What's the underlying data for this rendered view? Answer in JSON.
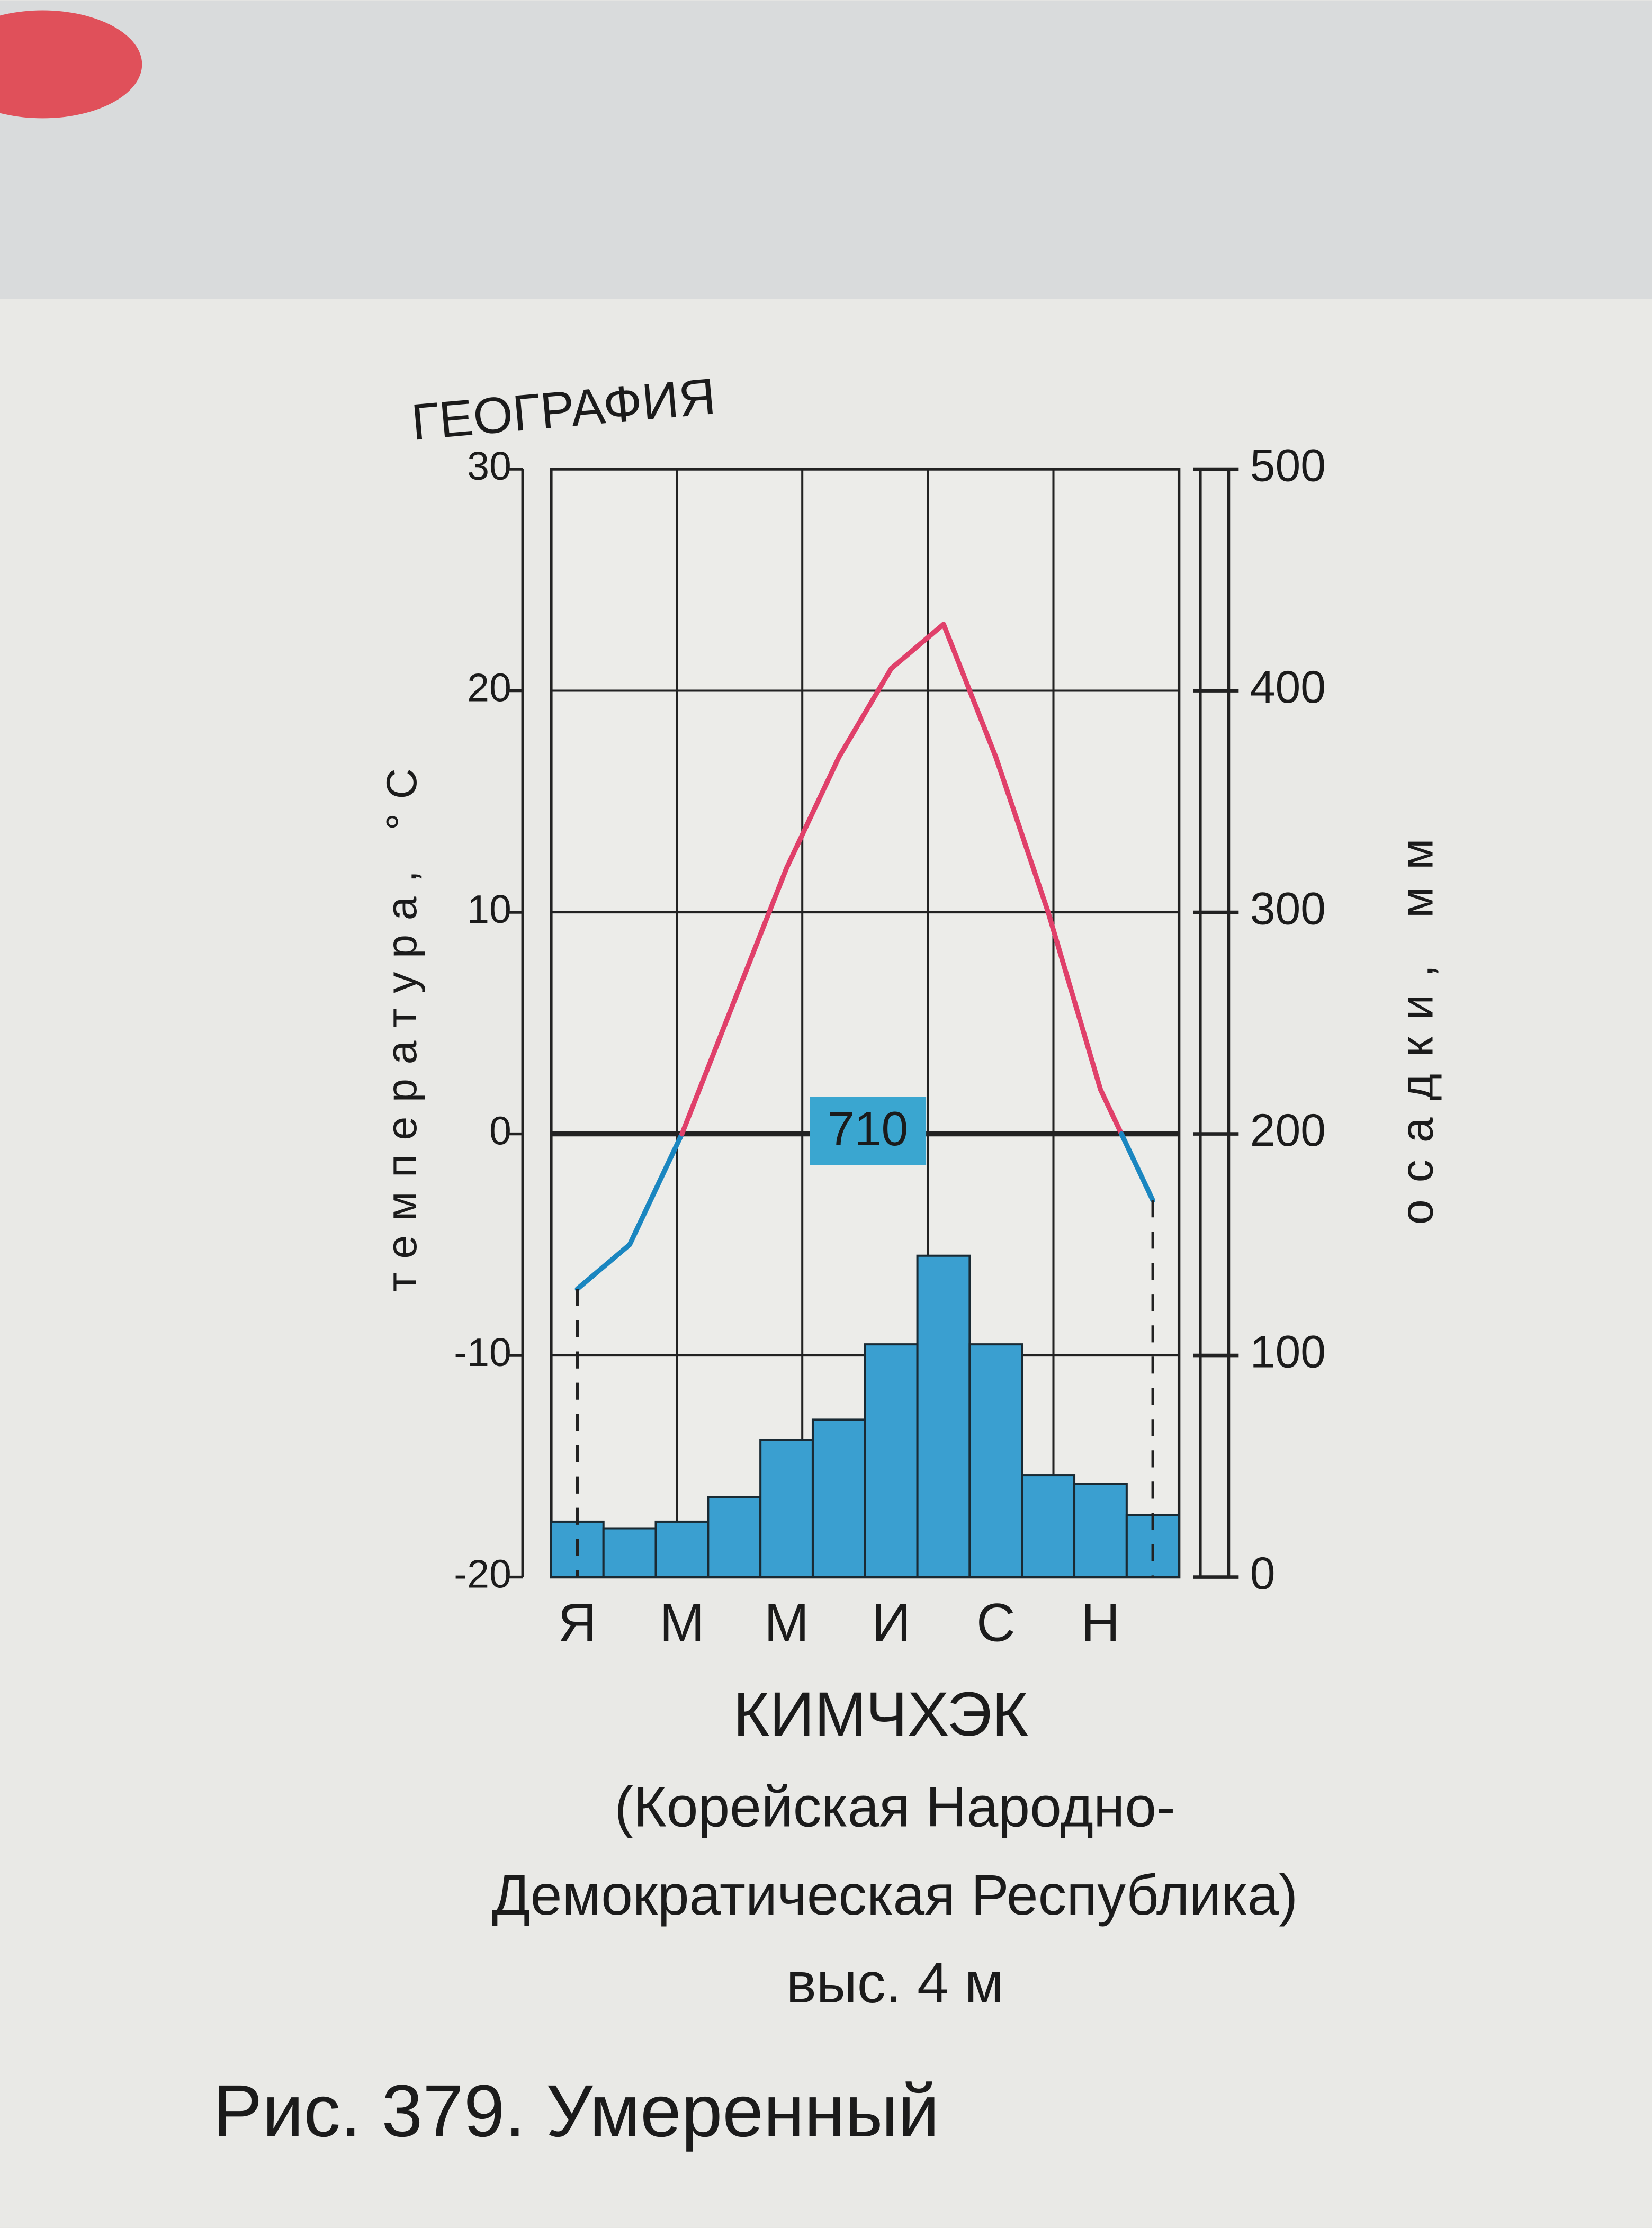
{
  "header": "ГЕОГРАФИЯ",
  "chart_data": {
    "type": "climate",
    "title": "КИМЧХЭК",
    "subtitle": [
      "(Корейская Народно-",
      "Демократическая Республика)",
      "выс. 4 м"
    ],
    "ylabel": "температура, °С",
    "y2label": "осадки, мм",
    "annotation": "710",
    "categories": [
      "Я",
      null,
      "М",
      null,
      "М",
      null,
      "И",
      null,
      "С",
      null,
      "Н",
      null
    ],
    "series": [
      {
        "type": "bar",
        "axis": "y2",
        "color": "#3a9fd0",
        "values": [
          25,
          22,
          25,
          36,
          62,
          71,
          105,
          145,
          105,
          46,
          42,
          28
        ]
      },
      {
        "type": "line",
        "axis": "y",
        "color": "#e0406a",
        "negative_color": "#1a86c0",
        "values": [
          -7,
          -5,
          0,
          6,
          12,
          17,
          21,
          23,
          17,
          10,
          2,
          -3
        ]
      }
    ],
    "ylim": [
      -20,
      30
    ],
    "yticks": [
      -20,
      -10,
      0,
      10,
      20,
      30
    ],
    "y2lim": [
      0,
      500
    ],
    "y2ticks": [
      0,
      100,
      200,
      300,
      400,
      500
    ],
    "grid": true
  },
  "caption": "Рис. 379. Умеренный"
}
